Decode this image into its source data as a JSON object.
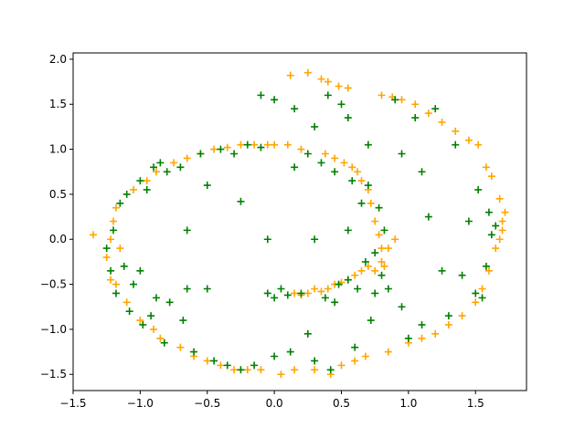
{
  "chart_data": {
    "type": "scatter",
    "title": "",
    "xlabel": "",
    "ylabel": "",
    "xlim": [
      -1.5,
      1.88
    ],
    "ylim": [
      -1.68,
      2.07
    ],
    "xticks": [
      -1.5,
      -1.0,
      -0.5,
      0.0,
      0.5,
      1.0,
      1.5
    ],
    "yticks": [
      -1.5,
      -1.0,
      -0.5,
      0.0,
      0.5,
      1.0,
      1.5,
      2.0
    ],
    "xtick_labels": [
      "−1.5",
      "−1.0",
      "−0.5",
      "0.0",
      "0.5",
      "1.0",
      "1.5"
    ],
    "ytick_labels": [
      "−1.5",
      "−1.0",
      "−0.5",
      "0.0",
      "0.5",
      "1.0",
      "1.5",
      "2.0"
    ],
    "grid": false,
    "marker": "+",
    "series": [
      {
        "color": "#ffa500",
        "points": [
          [
            -1.35,
            0.05
          ],
          [
            -1.25,
            -0.2
          ],
          [
            -1.22,
            0.0
          ],
          [
            -1.2,
            0.2
          ],
          [
            -1.22,
            -0.45
          ],
          [
            -1.18,
            -0.5
          ],
          [
            -1.18,
            0.35
          ],
          [
            -1.15,
            -0.1
          ],
          [
            -1.1,
            -0.7
          ],
          [
            -1.05,
            0.55
          ],
          [
            -1.0,
            -0.9
          ],
          [
            -0.95,
            0.65
          ],
          [
            -0.9,
            -1.0
          ],
          [
            -0.88,
            0.75
          ],
          [
            -0.85,
            -1.1
          ],
          [
            -0.75,
            0.85
          ],
          [
            -0.7,
            -1.2
          ],
          [
            -0.65,
            0.9
          ],
          [
            -0.6,
            -1.3
          ],
          [
            -0.55,
            0.95
          ],
          [
            -0.5,
            -1.35
          ],
          [
            -0.45,
            1.0
          ],
          [
            -0.4,
            -1.4
          ],
          [
            -0.35,
            1.02
          ],
          [
            -0.3,
            -1.45
          ],
          [
            -0.25,
            1.05
          ],
          [
            -0.2,
            -1.45
          ],
          [
            -0.15,
            1.05
          ],
          [
            -0.1,
            -1.45
          ],
          [
            -0.05,
            1.05
          ],
          [
            0.0,
            1.05
          ],
          [
            0.05,
            -1.5
          ],
          [
            0.1,
            1.05
          ],
          [
            0.12,
            1.82
          ],
          [
            0.15,
            -1.45
          ],
          [
            0.2,
            1.0
          ],
          [
            0.25,
            1.85
          ],
          [
            0.3,
            -1.45
          ],
          [
            0.35,
            1.78
          ],
          [
            0.38,
            0.95
          ],
          [
            0.4,
            1.75
          ],
          [
            0.42,
            -1.5
          ],
          [
            0.45,
            0.9
          ],
          [
            0.48,
            1.7
          ],
          [
            0.5,
            -1.4
          ],
          [
            0.52,
            0.85
          ],
          [
            0.55,
            1.68
          ],
          [
            0.58,
            0.8
          ],
          [
            0.6,
            -1.35
          ],
          [
            0.62,
            0.75
          ],
          [
            0.65,
            0.65
          ],
          [
            0.68,
            -1.3
          ],
          [
            0.7,
            0.55
          ],
          [
            0.72,
            0.4
          ],
          [
            0.75,
            0.2
          ],
          [
            0.78,
            0.05
          ],
          [
            0.8,
            -0.1
          ],
          [
            0.8,
            -0.25
          ],
          [
            0.82,
            -0.3
          ],
          [
            0.85,
            -0.1
          ],
          [
            0.8,
            1.6
          ],
          [
            0.85,
            -1.25
          ],
          [
            0.88,
            1.58
          ],
          [
            0.9,
            0.0
          ],
          [
            0.95,
            1.55
          ],
          [
            1.0,
            -1.15
          ],
          [
            1.05,
            1.5
          ],
          [
            1.1,
            -1.1
          ],
          [
            1.15,
            1.4
          ],
          [
            1.2,
            -1.05
          ],
          [
            1.25,
            1.3
          ],
          [
            1.3,
            -0.95
          ],
          [
            1.35,
            1.2
          ],
          [
            1.4,
            -0.85
          ],
          [
            1.45,
            1.1
          ],
          [
            1.5,
            -0.7
          ],
          [
            1.52,
            1.05
          ],
          [
            1.55,
            -0.55
          ],
          [
            1.58,
            0.8
          ],
          [
            1.6,
            -0.35
          ],
          [
            1.62,
            0.7
          ],
          [
            1.65,
            -0.1
          ],
          [
            1.68,
            0.45
          ],
          [
            1.7,
            0.1
          ],
          [
            1.72,
            0.3
          ],
          [
            1.7,
            0.2
          ],
          [
            1.68,
            0.0
          ],
          [
            0.15,
            -0.6
          ],
          [
            0.2,
            -0.62
          ],
          [
            0.25,
            -0.6
          ],
          [
            0.3,
            -0.55
          ],
          [
            0.35,
            -0.58
          ],
          [
            0.4,
            -0.55
          ],
          [
            0.45,
            -0.5
          ],
          [
            0.5,
            -0.48
          ],
          [
            0.55,
            -0.45
          ],
          [
            0.6,
            -0.4
          ],
          [
            0.65,
            -0.35
          ],
          [
            0.7,
            -0.3
          ],
          [
            0.75,
            -0.35
          ]
        ]
      },
      {
        "color": "#008000",
        "points": [
          [
            -1.25,
            -0.1
          ],
          [
            -1.22,
            -0.35
          ],
          [
            -1.2,
            0.1
          ],
          [
            -1.18,
            -0.6
          ],
          [
            -1.15,
            0.4
          ],
          [
            -1.12,
            -0.3
          ],
          [
            -1.1,
            0.5
          ],
          [
            -1.08,
            -0.8
          ],
          [
            -1.05,
            -0.5
          ],
          [
            -1.0,
            0.65
          ],
          [
            -1.0,
            -0.35
          ],
          [
            -0.98,
            -0.95
          ],
          [
            -0.95,
            0.55
          ],
          [
            -0.92,
            -0.85
          ],
          [
            -0.9,
            0.8
          ],
          [
            -0.88,
            -0.65
          ],
          [
            -0.85,
            0.85
          ],
          [
            -0.82,
            -1.15
          ],
          [
            -0.8,
            0.75
          ],
          [
            -0.78,
            -0.7
          ],
          [
            -0.7,
            0.8
          ],
          [
            -0.68,
            -0.9
          ],
          [
            -0.65,
            -0.55
          ],
          [
            -0.6,
            -1.25
          ],
          [
            -0.55,
            0.95
          ],
          [
            -0.5,
            -0.55
          ],
          [
            -0.45,
            -1.35
          ],
          [
            -0.4,
            1.0
          ],
          [
            -0.35,
            -1.4
          ],
          [
            -0.3,
            0.95
          ],
          [
            -0.25,
            -1.45
          ],
          [
            -0.2,
            1.05
          ],
          [
            -0.15,
            -1.4
          ],
          [
            -0.1,
            1.02
          ],
          [
            -0.05,
            -0.6
          ],
          [
            0.0,
            -0.65
          ],
          [
            0.05,
            -0.55
          ],
          [
            0.1,
            -0.62
          ],
          [
            0.12,
            -1.25
          ],
          [
            0.15,
            0.8
          ],
          [
            0.2,
            -0.6
          ],
          [
            0.25,
            0.95
          ],
          [
            0.3,
            -1.35
          ],
          [
            0.35,
            0.85
          ],
          [
            0.38,
            -0.65
          ],
          [
            0.4,
            1.6
          ],
          [
            0.42,
            -1.45
          ],
          [
            0.45,
            0.75
          ],
          [
            0.48,
            -0.5
          ],
          [
            0.5,
            1.5
          ],
          [
            0.55,
            -0.45
          ],
          [
            0.58,
            0.65
          ],
          [
            0.6,
            -1.2
          ],
          [
            0.62,
            -0.55
          ],
          [
            0.65,
            0.4
          ],
          [
            0.68,
            -0.25
          ],
          [
            0.7,
            0.6
          ],
          [
            0.72,
            -0.9
          ],
          [
            0.75,
            -0.15
          ],
          [
            0.78,
            0.35
          ],
          [
            0.8,
            -0.4
          ],
          [
            0.82,
            0.1
          ],
          [
            0.85,
            -0.55
          ],
          [
            0.9,
            1.55
          ],
          [
            0.95,
            -0.75
          ],
          [
            1.0,
            -1.1
          ],
          [
            1.05,
            1.35
          ],
          [
            1.1,
            -0.95
          ],
          [
            1.15,
            0.25
          ],
          [
            1.2,
            1.45
          ],
          [
            1.25,
            -0.35
          ],
          [
            1.3,
            -0.85
          ],
          [
            1.35,
            1.05
          ],
          [
            1.4,
            -0.4
          ],
          [
            1.45,
            0.2
          ],
          [
            1.5,
            -0.6
          ],
          [
            1.52,
            0.55
          ],
          [
            1.55,
            -0.65
          ],
          [
            1.58,
            -0.3
          ],
          [
            1.6,
            0.3
          ],
          [
            1.62,
            0.05
          ],
          [
            1.65,
            0.15
          ],
          [
            -0.1,
            1.6
          ],
          [
            0.0,
            1.55
          ],
          [
            0.15,
            1.45
          ],
          [
            0.3,
            1.25
          ],
          [
            0.55,
            1.35
          ],
          [
            0.7,
            1.05
          ],
          [
            0.95,
            0.95
          ],
          [
            1.1,
            0.75
          ],
          [
            -0.25,
            0.42
          ],
          [
            -0.5,
            0.6
          ],
          [
            -0.65,
            0.1
          ],
          [
            -0.05,
            0.0
          ],
          [
            0.3,
            0.0
          ],
          [
            0.55,
            0.1
          ],
          [
            0.0,
            -1.3
          ],
          [
            0.25,
            -1.05
          ],
          [
            0.75,
            -0.6
          ],
          [
            0.45,
            -0.7
          ]
        ]
      }
    ]
  }
}
